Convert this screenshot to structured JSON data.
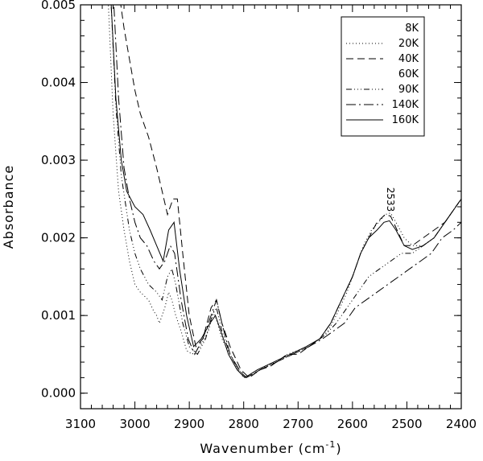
{
  "chart_data": {
    "type": "line",
    "title": "",
    "xlabel": "Wavenumber (cm",
    "xlabel_sup": "-1",
    "xlabel_close": ")",
    "ylabel": "Absorbance",
    "xlim": [
      3100,
      2400
    ],
    "ylim": [
      -0.0002,
      0.005
    ],
    "x_ticks": [
      3100,
      3000,
      2900,
      2800,
      2700,
      2600,
      2500,
      2400
    ],
    "x_tick_labels": [
      "3100",
      "3000",
      "2900",
      "2800",
      "2700",
      "2600",
      "2500",
      "2400"
    ],
    "y_ticks": [
      0.0,
      0.001,
      0.002,
      0.003,
      0.004,
      0.005
    ],
    "y_tick_labels": [
      "0.000",
      "0.001",
      "0.002",
      "0.003",
      "0.004",
      "0.005"
    ],
    "grid": false,
    "legend_position": "top-right",
    "annotation": {
      "text": "2533",
      "x": 2530,
      "y": 0.0027,
      "rotation": 90
    },
    "series": [
      {
        "name": "8K",
        "dash": "none",
        "style": "blank",
        "points": []
      },
      {
        "name": "20K",
        "dash": "1,3",
        "points": [
          [
            3050,
            0.0052
          ],
          [
            3040,
            0.0036
          ],
          [
            3030,
            0.0026
          ],
          [
            3020,
            0.0021
          ],
          [
            3010,
            0.0017
          ],
          [
            3000,
            0.0014
          ],
          [
            2990,
            0.0013
          ],
          [
            2975,
            0.0012
          ],
          [
            2965,
            0.00105
          ],
          [
            2960,
            0.001
          ],
          [
            2955,
            0.0009
          ],
          [
            2945,
            0.0011
          ],
          [
            2938,
            0.0013
          ],
          [
            2932,
            0.0012
          ],
          [
            2925,
            0.001
          ],
          [
            2915,
            0.0008
          ],
          [
            2905,
            0.00055
          ],
          [
            2895,
            0.0005
          ],
          [
            2880,
            0.0006
          ],
          [
            2865,
            0.0008
          ],
          [
            2855,
            0.00105
          ],
          [
            2848,
            0.0009
          ],
          [
            2840,
            0.0007
          ],
          [
            2825,
            0.0005
          ],
          [
            2810,
            0.0003
          ],
          [
            2800,
            0.0002
          ],
          [
            2780,
            0.00025
          ],
          [
            2760,
            0.00035
          ],
          [
            2740,
            0.0004
          ],
          [
            2720,
            0.0005
          ],
          [
            2700,
            0.00055
          ],
          [
            2680,
            0.0006
          ],
          [
            2660,
            0.0007
          ],
          [
            2645,
            0.0008
          ],
          [
            2630,
            0.001
          ],
          [
            2610,
            0.0013
          ],
          [
            2595,
            0.0016
          ],
          [
            2580,
            0.0019
          ],
          [
            2565,
            0.0021
          ],
          [
            2552,
            0.0022
          ],
          [
            2540,
            0.0023
          ],
          [
            2530,
            0.00232
          ],
          [
            2520,
            0.0022
          ],
          [
            2505,
            0.002
          ],
          [
            2490,
            0.0019
          ],
          [
            2470,
            0.0019
          ],
          [
            2450,
            0.002
          ],
          [
            2430,
            0.0022
          ],
          [
            2410,
            0.0024
          ],
          [
            2400,
            0.0025
          ]
        ]
      },
      {
        "name": "40K",
        "dash": "9,5",
        "points": [
          [
            3030,
            0.0052
          ],
          [
            3020,
            0.0047
          ],
          [
            3010,
            0.0043
          ],
          [
            3000,
            0.0039
          ],
          [
            2990,
            0.0036
          ],
          [
            2975,
            0.0033
          ],
          [
            2960,
            0.0029
          ],
          [
            2950,
            0.0026
          ],
          [
            2940,
            0.0023
          ],
          [
            2930,
            0.0025
          ],
          [
            2922,
            0.0025
          ],
          [
            2912,
            0.0018
          ],
          [
            2900,
            0.001
          ],
          [
            2888,
            0.0006
          ],
          [
            2875,
            0.0007
          ],
          [
            2860,
            0.0011
          ],
          [
            2850,
            0.0012
          ],
          [
            2840,
            0.0009
          ],
          [
            2825,
            0.0006
          ],
          [
            2805,
            0.0003
          ],
          [
            2790,
            0.0002
          ],
          [
            2770,
            0.0003
          ],
          [
            2750,
            0.00035
          ],
          [
            2720,
            0.0005
          ],
          [
            2700,
            0.0005
          ],
          [
            2680,
            0.0006
          ],
          [
            2660,
            0.0007
          ],
          [
            2640,
            0.0009
          ],
          [
            2620,
            0.0012
          ],
          [
            2600,
            0.0015
          ],
          [
            2585,
            0.0018
          ],
          [
            2570,
            0.002
          ],
          [
            2555,
            0.0022
          ],
          [
            2540,
            0.0023
          ],
          [
            2530,
            0.00228
          ],
          [
            2518,
            0.0021
          ],
          [
            2505,
            0.0019
          ],
          [
            2490,
            0.0019
          ],
          [
            2470,
            0.002
          ],
          [
            2450,
            0.0021
          ],
          [
            2430,
            0.0022
          ],
          [
            2410,
            0.0024
          ],
          [
            2400,
            0.0025
          ]
        ]
      },
      {
        "name": "60K",
        "dash": "none",
        "style": "blank",
        "points": []
      },
      {
        "name": "90K",
        "dash": "7,3,1,3,1,3,1,3",
        "points": [
          [
            3045,
            0.0052
          ],
          [
            3035,
            0.0037
          ],
          [
            3025,
            0.0028
          ],
          [
            3010,
            0.0021
          ],
          [
            3000,
            0.0018
          ],
          [
            2990,
            0.0016
          ],
          [
            2975,
            0.0014
          ],
          [
            2960,
            0.0013
          ],
          [
            2950,
            0.0012
          ],
          [
            2940,
            0.0015
          ],
          [
            2932,
            0.0016
          ],
          [
            2925,
            0.0014
          ],
          [
            2912,
            0.0009
          ],
          [
            2900,
            0.0006
          ],
          [
            2885,
            0.0005
          ],
          [
            2870,
            0.0007
          ],
          [
            2858,
            0.001
          ],
          [
            2850,
            0.0011
          ],
          [
            2840,
            0.0008
          ],
          [
            2825,
            0.0005
          ],
          [
            2810,
            0.0003
          ],
          [
            2795,
            0.0002
          ],
          [
            2770,
            0.0003
          ],
          [
            2740,
            0.0004
          ],
          [
            2710,
            0.0005
          ],
          [
            2680,
            0.0006
          ],
          [
            2650,
            0.00075
          ],
          [
            2630,
            0.0009
          ],
          [
            2610,
            0.0011
          ],
          [
            2590,
            0.0013
          ],
          [
            2570,
            0.0015
          ],
          [
            2550,
            0.0016
          ],
          [
            2530,
            0.0017
          ],
          [
            2510,
            0.0018
          ],
          [
            2490,
            0.0018
          ],
          [
            2470,
            0.0019
          ],
          [
            2450,
            0.002
          ],
          [
            2430,
            0.0022
          ],
          [
            2410,
            0.0024
          ],
          [
            2400,
            0.0025
          ]
        ]
      },
      {
        "name": "140K",
        "dash": "12,4,2,4",
        "points": [
          [
            3040,
            0.0052
          ],
          [
            3030,
            0.0038
          ],
          [
            3020,
            0.0029
          ],
          [
            3010,
            0.0025
          ],
          [
            3000,
            0.0022
          ],
          [
            2990,
            0.002
          ],
          [
            2978,
            0.0019
          ],
          [
            2965,
            0.0017
          ],
          [
            2955,
            0.0016
          ],
          [
            2945,
            0.0017
          ],
          [
            2935,
            0.0019
          ],
          [
            2927,
            0.0018
          ],
          [
            2915,
            0.0012
          ],
          [
            2902,
            0.0007
          ],
          [
            2890,
            0.0005
          ],
          [
            2875,
            0.0007
          ],
          [
            2860,
            0.001
          ],
          [
            2850,
            0.0012
          ],
          [
            2840,
            0.0009
          ],
          [
            2825,
            0.0005
          ],
          [
            2808,
            0.0003
          ],
          [
            2795,
            0.0002
          ],
          [
            2770,
            0.0003
          ],
          [
            2740,
            0.0004
          ],
          [
            2710,
            0.0005
          ],
          [
            2680,
            0.0006
          ],
          [
            2655,
            0.0007
          ],
          [
            2635,
            0.0008
          ],
          [
            2615,
            0.0009
          ],
          [
            2595,
            0.0011
          ],
          [
            2575,
            0.0012
          ],
          [
            2555,
            0.0013
          ],
          [
            2535,
            0.0014
          ],
          [
            2515,
            0.0015
          ],
          [
            2495,
            0.0016
          ],
          [
            2475,
            0.0017
          ],
          [
            2455,
            0.0018
          ],
          [
            2435,
            0.002
          ],
          [
            2415,
            0.0021
          ],
          [
            2400,
            0.0022
          ]
        ]
      },
      {
        "name": "160K",
        "dash": "none",
        "points": [
          [
            3045,
            0.0052
          ],
          [
            3035,
            0.0038
          ],
          [
            3025,
            0.003
          ],
          [
            3015,
            0.0026
          ],
          [
            3000,
            0.0024
          ],
          [
            2985,
            0.0023
          ],
          [
            2972,
            0.0021
          ],
          [
            2960,
            0.0019
          ],
          [
            2948,
            0.0017
          ],
          [
            2938,
            0.0021
          ],
          [
            2928,
            0.0022
          ],
          [
            2918,
            0.0016
          ],
          [
            2905,
            0.001
          ],
          [
            2892,
            0.0006
          ],
          [
            2878,
            0.0007
          ],
          [
            2862,
            0.0009
          ],
          [
            2852,
            0.001
          ],
          [
            2842,
            0.0008
          ],
          [
            2828,
            0.0005
          ],
          [
            2812,
            0.0003
          ],
          [
            2798,
            0.0002
          ],
          [
            2775,
            0.0003
          ],
          [
            2745,
            0.0004
          ],
          [
            2715,
            0.0005
          ],
          [
            2685,
            0.0006
          ],
          [
            2660,
            0.0007
          ],
          [
            2640,
            0.0009
          ],
          [
            2620,
            0.0012
          ],
          [
            2600,
            0.0015
          ],
          [
            2585,
            0.0018
          ],
          [
            2570,
            0.002
          ],
          [
            2555,
            0.0021
          ],
          [
            2542,
            0.0022
          ],
          [
            2532,
            0.00222
          ],
          [
            2520,
            0.0021
          ],
          [
            2505,
            0.0019
          ],
          [
            2490,
            0.00185
          ],
          [
            2470,
            0.0019
          ],
          [
            2450,
            0.002
          ],
          [
            2430,
            0.0022
          ],
          [
            2410,
            0.0024
          ],
          [
            2400,
            0.0025
          ]
        ]
      }
    ]
  }
}
